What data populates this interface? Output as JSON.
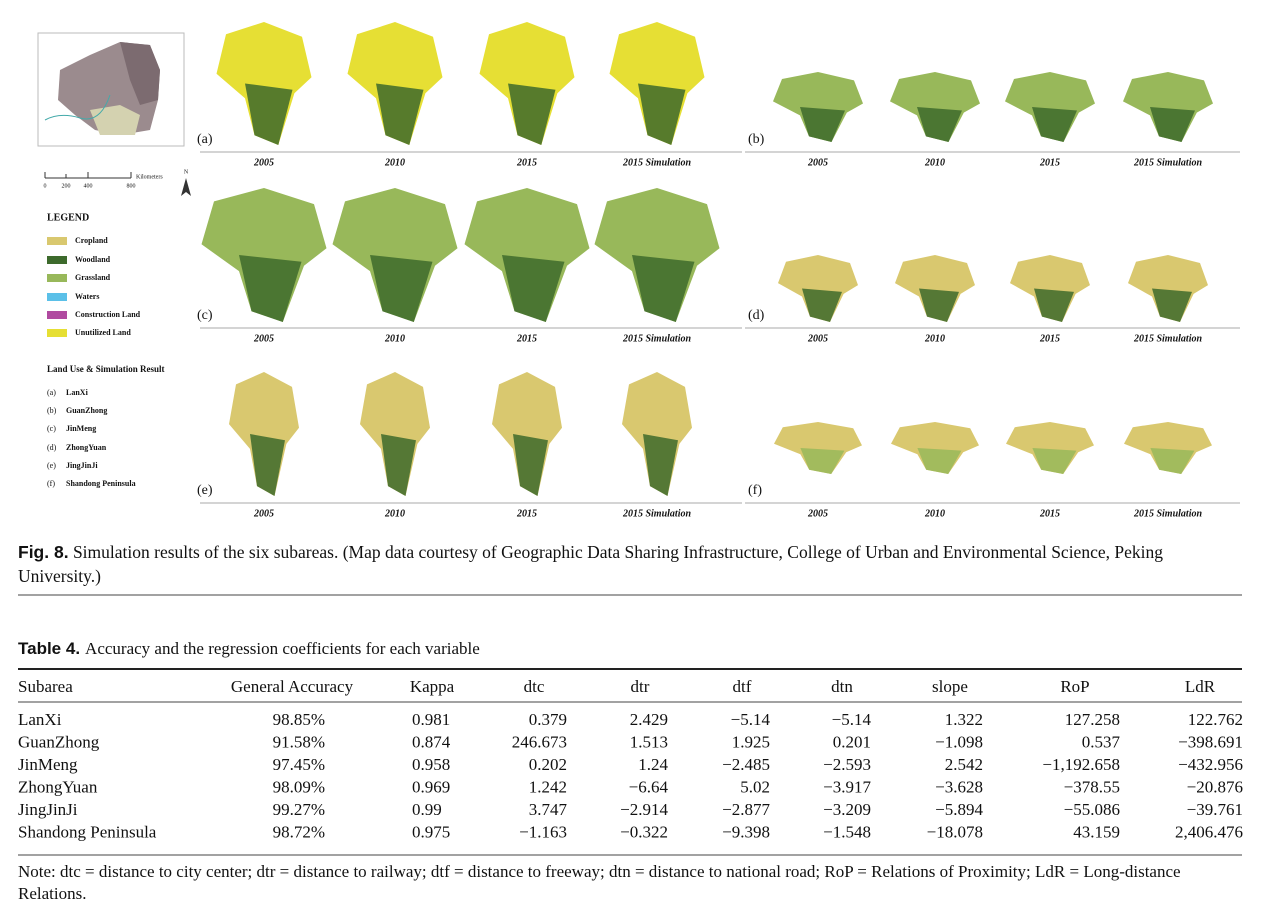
{
  "figure": {
    "scale_unit": "Kilometers",
    "scale_ticks": [
      "0",
      "200",
      "400",
      "800"
    ],
    "north": "N",
    "legend_title": "LEGEND",
    "legend_items": [
      "Cropland",
      "Woodland",
      "Grassland",
      "Waters",
      "Construction Land",
      "Unutilized Land"
    ],
    "result_title": "Land Use & Simulation Result",
    "subareas": [
      {
        "code": "(a)",
        "name": "LanXi"
      },
      {
        "code": "(b)",
        "name": "GuanZhong"
      },
      {
        "code": "(c)",
        "name": "JinMeng"
      },
      {
        "code": "(d)",
        "name": "ZhongYuan"
      },
      {
        "code": "(e)",
        "name": "JingJinJi"
      },
      {
        "code": "(f)",
        "name": "Shandong Peninsula"
      }
    ],
    "panels": [
      {
        "label": "(a)",
        "years": [
          "2005",
          "2010",
          "2015",
          "2015 Simulation"
        ]
      },
      {
        "label": "(b)",
        "years": [
          "2005",
          "2010",
          "2015",
          "2015 Simulation"
        ]
      },
      {
        "label": "(c)",
        "years": [
          "2005",
          "2010",
          "2015",
          "2015 Simulation"
        ]
      },
      {
        "label": "(d)",
        "years": [
          "2005",
          "2010",
          "2015",
          "2015 Simulation"
        ]
      },
      {
        "label": "(e)",
        "years": [
          "2005",
          "2010",
          "2015",
          "2015 Simulation"
        ]
      },
      {
        "label": "(f)",
        "years": [
          "2005",
          "2010",
          "2015",
          "2015 Simulation"
        ]
      }
    ],
    "caption_label": "Fig. 8.",
    "caption": "Simulation results of the six subareas. (Map data courtesy of Geographic Data Sharing Infrastructure, College of Urban and Environmental Science, Peking University.)"
  },
  "table": {
    "label": "Table 4.",
    "title": "Accuracy and the regression coefficients for each variable",
    "columns": [
      "Subarea",
      "General Accuracy",
      "Kappa",
      "dtc",
      "dtr",
      "dtf",
      "dtn",
      "slope",
      "RoP",
      "LdR"
    ],
    "rows": [
      [
        "LanXi",
        "98.85%",
        "0.981",
        "0.379",
        "2.429",
        "−5.14",
        "−5.14",
        "1.322",
        "127.258",
        "122.762"
      ],
      [
        "GuanZhong",
        "91.58%",
        "0.874",
        "246.673",
        "1.513",
        "1.925",
        "0.201",
        "−1.098",
        "0.537",
        "−398.691"
      ],
      [
        "JinMeng",
        "97.45%",
        "0.958",
        "0.202",
        "1.24",
        "−2.485",
        "−2.593",
        "2.542",
        "−1,192.658",
        "−432.956"
      ],
      [
        "ZhongYuan",
        "98.09%",
        "0.969",
        "1.242",
        "−6.64",
        "5.02",
        "−3.917",
        "−3.628",
        "−378.55",
        "−20.876"
      ],
      [
        "JingJinJi",
        "99.27%",
        "0.99",
        "3.747",
        "−2.914",
        "−2.877",
        "−3.209",
        "−5.894",
        "−55.086",
        "−39.761"
      ],
      [
        "Shandong Peninsula",
        "98.72%",
        "0.975",
        "−1.163",
        "−0.322",
        "−9.398",
        "−1.548",
        "−18.078",
        "43.159",
        "2,406.476"
      ]
    ],
    "note": "Note: dtc = distance to city center; dtr = distance to railway; dtf = distance to freeway; dtn = distance to national road; RoP = Relations of Proximity; LdR = Long-distance Relations."
  }
}
